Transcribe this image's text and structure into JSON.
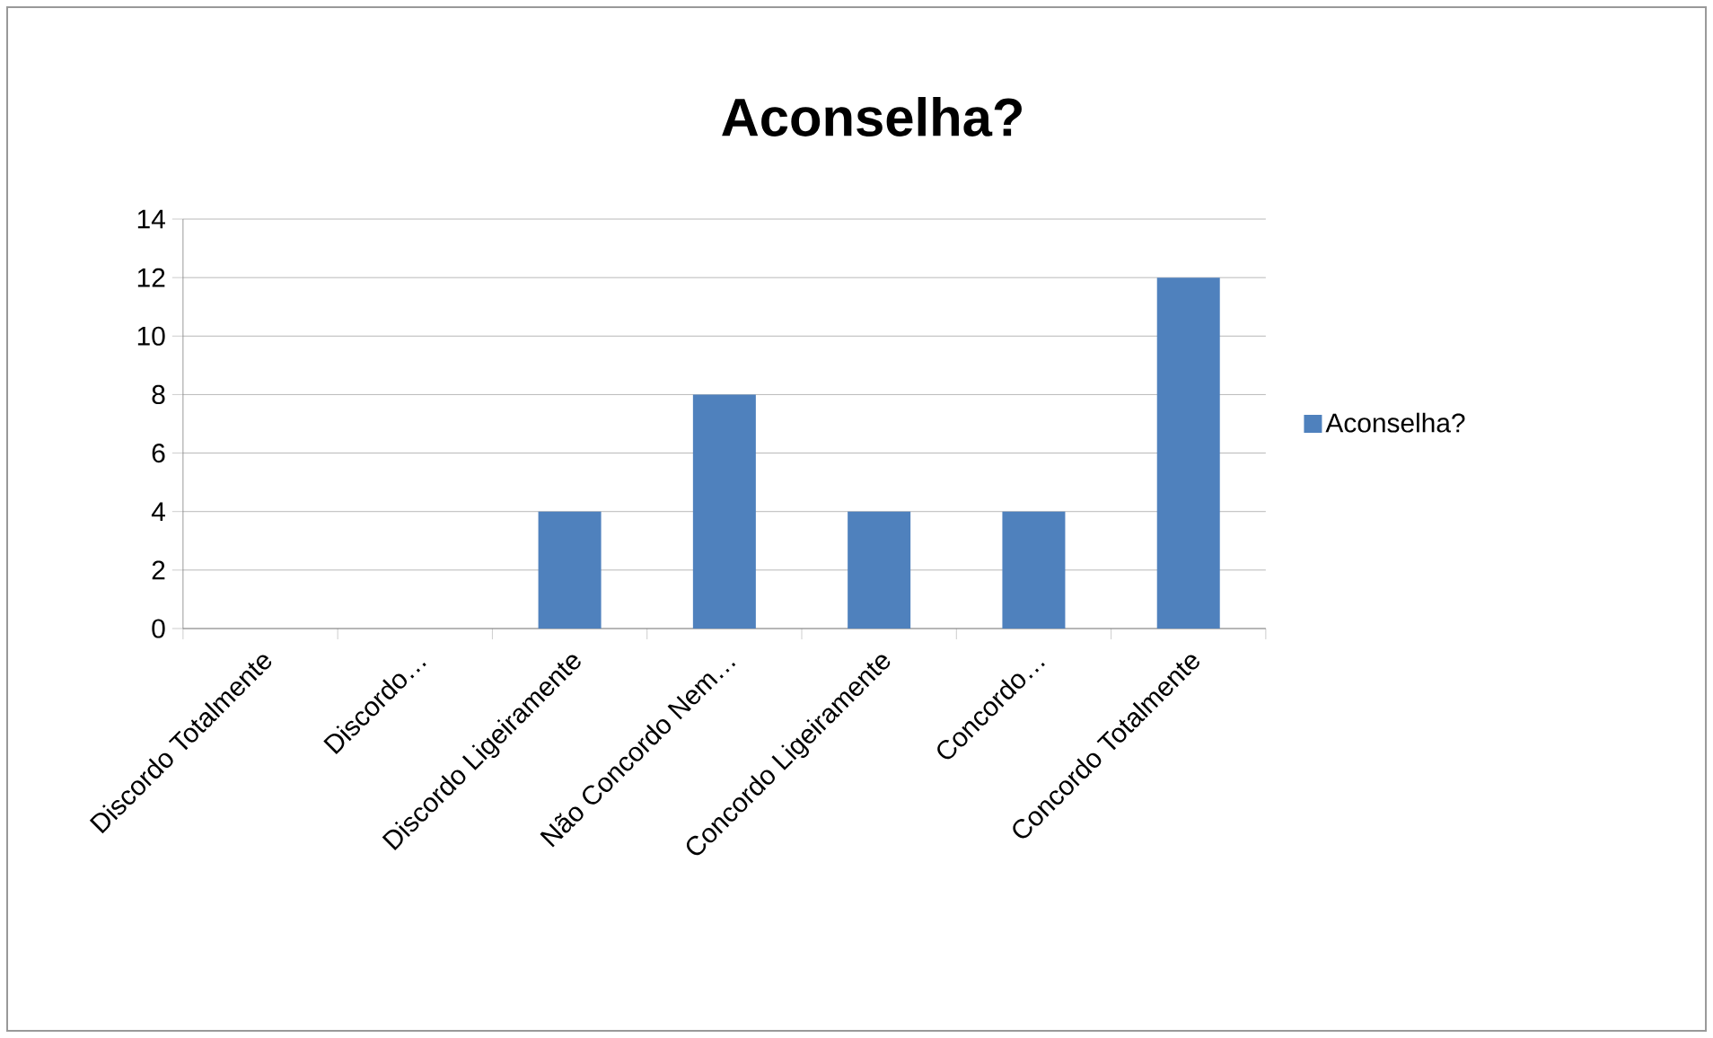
{
  "chart_data": {
    "type": "bar",
    "title": "Aconselha?",
    "categories": [
      "Discordo Totalmente",
      "Discordo…",
      "Discordo Ligeiramente",
      "Não Concordo Nem…",
      "Concordo Ligeiramente",
      "Concordo…",
      "Concordo Totalmente"
    ],
    "series": [
      {
        "name": "Aconselha?",
        "color": "#4f81bd",
        "values": [
          0,
          0,
          4,
          8,
          4,
          4,
          12
        ]
      }
    ],
    "ylim": [
      0,
      14
    ],
    "yticks": [
      0,
      2,
      4,
      6,
      8,
      10,
      12,
      14
    ],
    "grid": "y",
    "legend": "right"
  }
}
